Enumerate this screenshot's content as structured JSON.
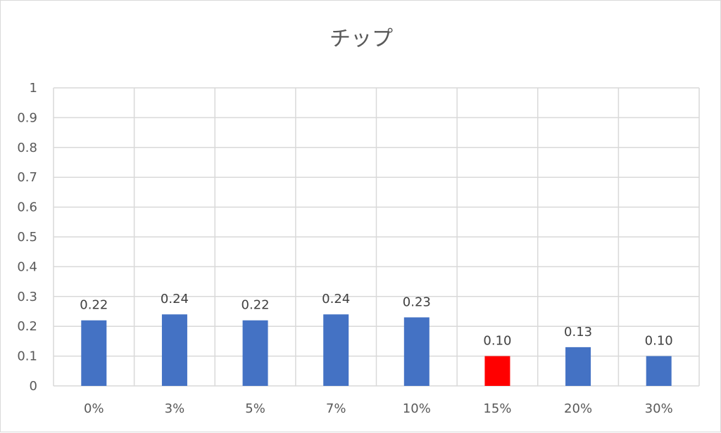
{
  "chart_data": {
    "type": "bar",
    "title": "チップ",
    "categories": [
      "0%",
      "3%",
      "5%",
      "7%",
      "10%",
      "15%",
      "20%",
      "30%"
    ],
    "values": [
      0.22,
      0.24,
      0.22,
      0.24,
      0.23,
      0.1,
      0.13,
      0.1
    ],
    "value_labels": [
      "0.22",
      "0.24",
      "0.22",
      "0.24",
      "0.23",
      "0.10",
      "0.13",
      "0.10"
    ],
    "bar_colors": [
      "#4472C4",
      "#4472C4",
      "#4472C4",
      "#4472C4",
      "#4472C4",
      "#FF0000",
      "#4472C4",
      "#4472C4"
    ],
    "ylim": [
      0,
      1
    ],
    "yticks": [
      0,
      0.1,
      0.2,
      0.3,
      0.4,
      0.5,
      0.6,
      0.7,
      0.8,
      0.9,
      1
    ],
    "ytick_labels": [
      "0",
      "0.1",
      "0.2",
      "0.3",
      "0.4",
      "0.5",
      "0.6",
      "0.7",
      "0.8",
      "0.9",
      "1"
    ],
    "grid": "horizontal and vertical",
    "gridline_color": "#d9d9d9",
    "xlabel": "",
    "ylabel": ""
  }
}
